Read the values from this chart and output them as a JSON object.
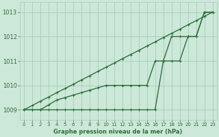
{
  "background_color": "#cce8d8",
  "grid_color": "#a8ccb8",
  "line_color": "#2d6e3a",
  "title": "Graphe pression niveau de la mer (hPa)",
  "ylim": [
    1008.6,
    1013.4
  ],
  "xlim": [
    -0.5,
    23.5
  ],
  "yticks": [
    1009,
    1010,
    1011,
    1012,
    1013
  ],
  "xticks": [
    0,
    1,
    2,
    3,
    4,
    5,
    6,
    7,
    8,
    9,
    10,
    11,
    12,
    13,
    14,
    15,
    16,
    17,
    18,
    19,
    20,
    21,
    22,
    23
  ],
  "line1_x": [
    0,
    1,
    2,
    3,
    4,
    5,
    6,
    7,
    8,
    9,
    10,
    11,
    12,
    13,
    14,
    15,
    16,
    17,
    18,
    19,
    20,
    21,
    22,
    23
  ],
  "line1_y": [
    1009,
    1009.17,
    1009.35,
    1009.52,
    1009.7,
    1009.87,
    1010.04,
    1010.22,
    1010.39,
    1010.57,
    1010.74,
    1010.91,
    1011.09,
    1011.26,
    1011.43,
    1011.61,
    1011.78,
    1011.96,
    1012.13,
    1012.3,
    1012.48,
    1012.65,
    1012.83,
    1013.0
  ],
  "line2_x": [
    0,
    1,
    2,
    3,
    4,
    5,
    6,
    7,
    8,
    9,
    10,
    11,
    12,
    13,
    14,
    15,
    16,
    17,
    18,
    19,
    20,
    21,
    22,
    23
  ],
  "line2_y": [
    1009,
    1009,
    1009,
    1009.2,
    1009.4,
    1009.5,
    1009.6,
    1009.7,
    1009.8,
    1009.9,
    1010,
    1010,
    1010,
    1010,
    1010,
    1010,
    1011,
    1011,
    1012,
    1012,
    1012,
    1012,
    1013,
    1013
  ],
  "line3_x": [
    0,
    1,
    2,
    3,
    4,
    5,
    6,
    7,
    8,
    9,
    10,
    11,
    12,
    13,
    14,
    15,
    16,
    17,
    18,
    19,
    20,
    21,
    22,
    23
  ],
  "line3_y": [
    1009,
    1009,
    1009,
    1009,
    1009,
    1009,
    1009,
    1009,
    1009,
    1009,
    1009,
    1009,
    1009,
    1009,
    1009,
    1009,
    1009,
    1011,
    1011,
    1011,
    1012,
    1012,
    1013,
    1013
  ],
  "marker": "+",
  "markersize": 3.5,
  "linewidth": 1.0
}
